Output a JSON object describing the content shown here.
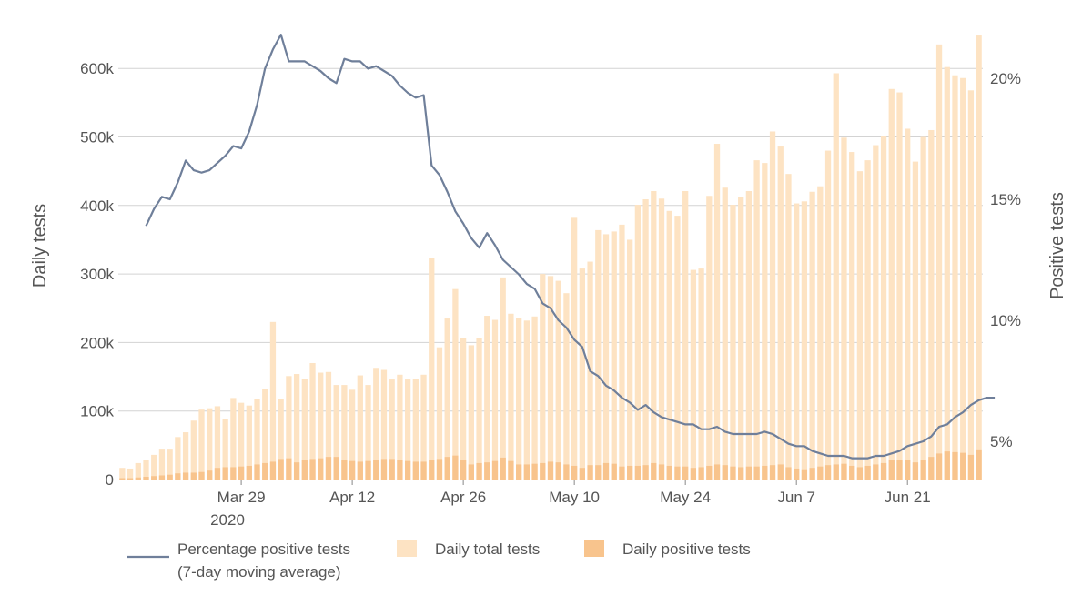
{
  "chart_data": {
    "type": "bar",
    "left_axis": {
      "label": "Daily tests",
      "range": [
        0,
        650000
      ],
      "ticks": [
        0,
        100000,
        200000,
        300000,
        400000,
        500000,
        600000
      ],
      "tick_labels": [
        "0",
        "100k",
        "200k",
        "300k",
        "400k",
        "500k",
        "600k"
      ]
    },
    "right_axis": {
      "label": "Positive tests",
      "range": [
        3.4,
        22.2
      ],
      "ticks": [
        5,
        10,
        15,
        20
      ],
      "tick_labels": [
        "5%",
        "10%",
        "15%",
        "20%"
      ]
    },
    "x_axis": {
      "start_date": "2020-03-14",
      "tick_indices": [
        15,
        29,
        43,
        57,
        71,
        85,
        99
      ],
      "tick_labels": [
        "Mar 29",
        "Apr 12",
        "Apr 26",
        "May 10",
        "May 24",
        "Jun 7",
        "Jun 21"
      ],
      "year_label": "2020"
    },
    "grid": true,
    "legend_position": "bottom",
    "legend": {
      "line": [
        "Percentage positive tests",
        "(7-day moving average)"
      ],
      "total": "Daily total tests",
      "positive": "Daily positive tests"
    },
    "colors": {
      "total": "#fde3c3",
      "positive": "#f8c48d",
      "line": "#6f7f9a",
      "grid": "#d3d3d3",
      "axis": "#555555"
    },
    "series": [
      {
        "name": "Daily total tests",
        "axis": "left",
        "values": [
          17000,
          16000,
          24000,
          28000,
          36000,
          45000,
          45000,
          62000,
          69000,
          86000,
          102000,
          104000,
          107000,
          88000,
          119000,
          112000,
          108000,
          117000,
          132000,
          230000,
          118000,
          151000,
          154000,
          147000,
          170000,
          156000,
          157000,
          138000,
          138000,
          131000,
          152000,
          138000,
          163000,
          160000,
          146000,
          153000,
          146000,
          147000,
          153000,
          324000,
          193000,
          235000,
          278000,
          206000,
          196000,
          206000,
          239000,
          233000,
          295000,
          242000,
          236000,
          232000,
          238000,
          300000,
          297000,
          290000,
          272000,
          382000,
          308000,
          318000,
          364000,
          358000,
          362000,
          372000,
          350000,
          401000,
          409000,
          421000,
          410000,
          392000,
          385000,
          421000,
          306000,
          308000,
          414000,
          490000,
          426000,
          401000,
          412000,
          421000,
          466000,
          462000,
          508000,
          486000,
          446000,
          403000,
          406000,
          420000,
          428000,
          480000,
          593000,
          499000,
          478000,
          450000,
          466000,
          488000,
          502000,
          570000,
          565000,
          512000,
          464000,
          500000,
          510000,
          635000,
          602000,
          590000,
          586000,
          568000,
          648000
        ],
        "color": "#fde3c3"
      },
      {
        "name": "Daily positive tests",
        "axis": "left",
        "values": [
          2000,
          2000,
          3000,
          4000,
          5000,
          6000,
          7000,
          9000,
          10000,
          10000,
          11000,
          13000,
          17000,
          18000,
          18000,
          19000,
          20000,
          22000,
          24000,
          26000,
          30000,
          31000,
          25000,
          28000,
          30000,
          31000,
          33000,
          33000,
          29000,
          27000,
          26000,
          27000,
          29000,
          30000,
          30000,
          29000,
          27000,
          26000,
          26000,
          28000,
          30000,
          33000,
          35000,
          28000,
          22000,
          24000,
          25000,
          27000,
          32000,
          27000,
          22000,
          22000,
          23000,
          24000,
          26000,
          25000,
          22000,
          20000,
          17000,
          21000,
          21000,
          24000,
          23000,
          19000,
          20000,
          20000,
          21000,
          24000,
          22000,
          20000,
          19000,
          19000,
          17000,
          18000,
          20000,
          22000,
          21000,
          19000,
          18000,
          19000,
          19000,
          20000,
          21000,
          22000,
          18000,
          16000,
          15000,
          17000,
          19000,
          21000,
          22000,
          23000,
          20000,
          18000,
          20000,
          22000,
          24000,
          28000,
          29000,
          28000,
          25000,
          28000,
          33000,
          38000,
          41000,
          40000,
          39000,
          36000,
          44000
        ],
        "color": "#f8c48d"
      },
      {
        "name": "Percentage positive tests (7-day moving average)",
        "axis": "right",
        "start_index": 3,
        "values": [
          13.9,
          14.6,
          15.1,
          15.0,
          15.7,
          16.6,
          16.2,
          16.1,
          16.2,
          16.5,
          16.8,
          17.2,
          17.1,
          17.8,
          18.9,
          20.4,
          21.2,
          21.8,
          20.7,
          20.7,
          20.7,
          20.5,
          20.3,
          20.0,
          19.8,
          20.8,
          20.7,
          20.7,
          20.4,
          20.5,
          20.3,
          20.1,
          19.7,
          19.4,
          19.2,
          19.3,
          16.4,
          16.0,
          15.3,
          14.5,
          14.0,
          13.4,
          13.0,
          13.6,
          13.1,
          12.5,
          12.2,
          11.9,
          11.5,
          11.3,
          10.7,
          10.5,
          10.0,
          9.7,
          9.2,
          8.9,
          7.9,
          7.7,
          7.3,
          7.1,
          6.8,
          6.6,
          6.3,
          6.5,
          6.2,
          6.0,
          5.9,
          5.8,
          5.7,
          5.7,
          5.5,
          5.5,
          5.6,
          5.4,
          5.3,
          5.3,
          5.3,
          5.3,
          5.4,
          5.3,
          5.1,
          4.9,
          4.8,
          4.8,
          4.6,
          4.5,
          4.4,
          4.4,
          4.4,
          4.3,
          4.3,
          4.3,
          4.4,
          4.4,
          4.5,
          4.6,
          4.8,
          4.9,
          5.0,
          5.2,
          5.6,
          5.7,
          6.0,
          6.2,
          6.5,
          6.7,
          6.8,
          6.8
        ]
      }
    ]
  }
}
